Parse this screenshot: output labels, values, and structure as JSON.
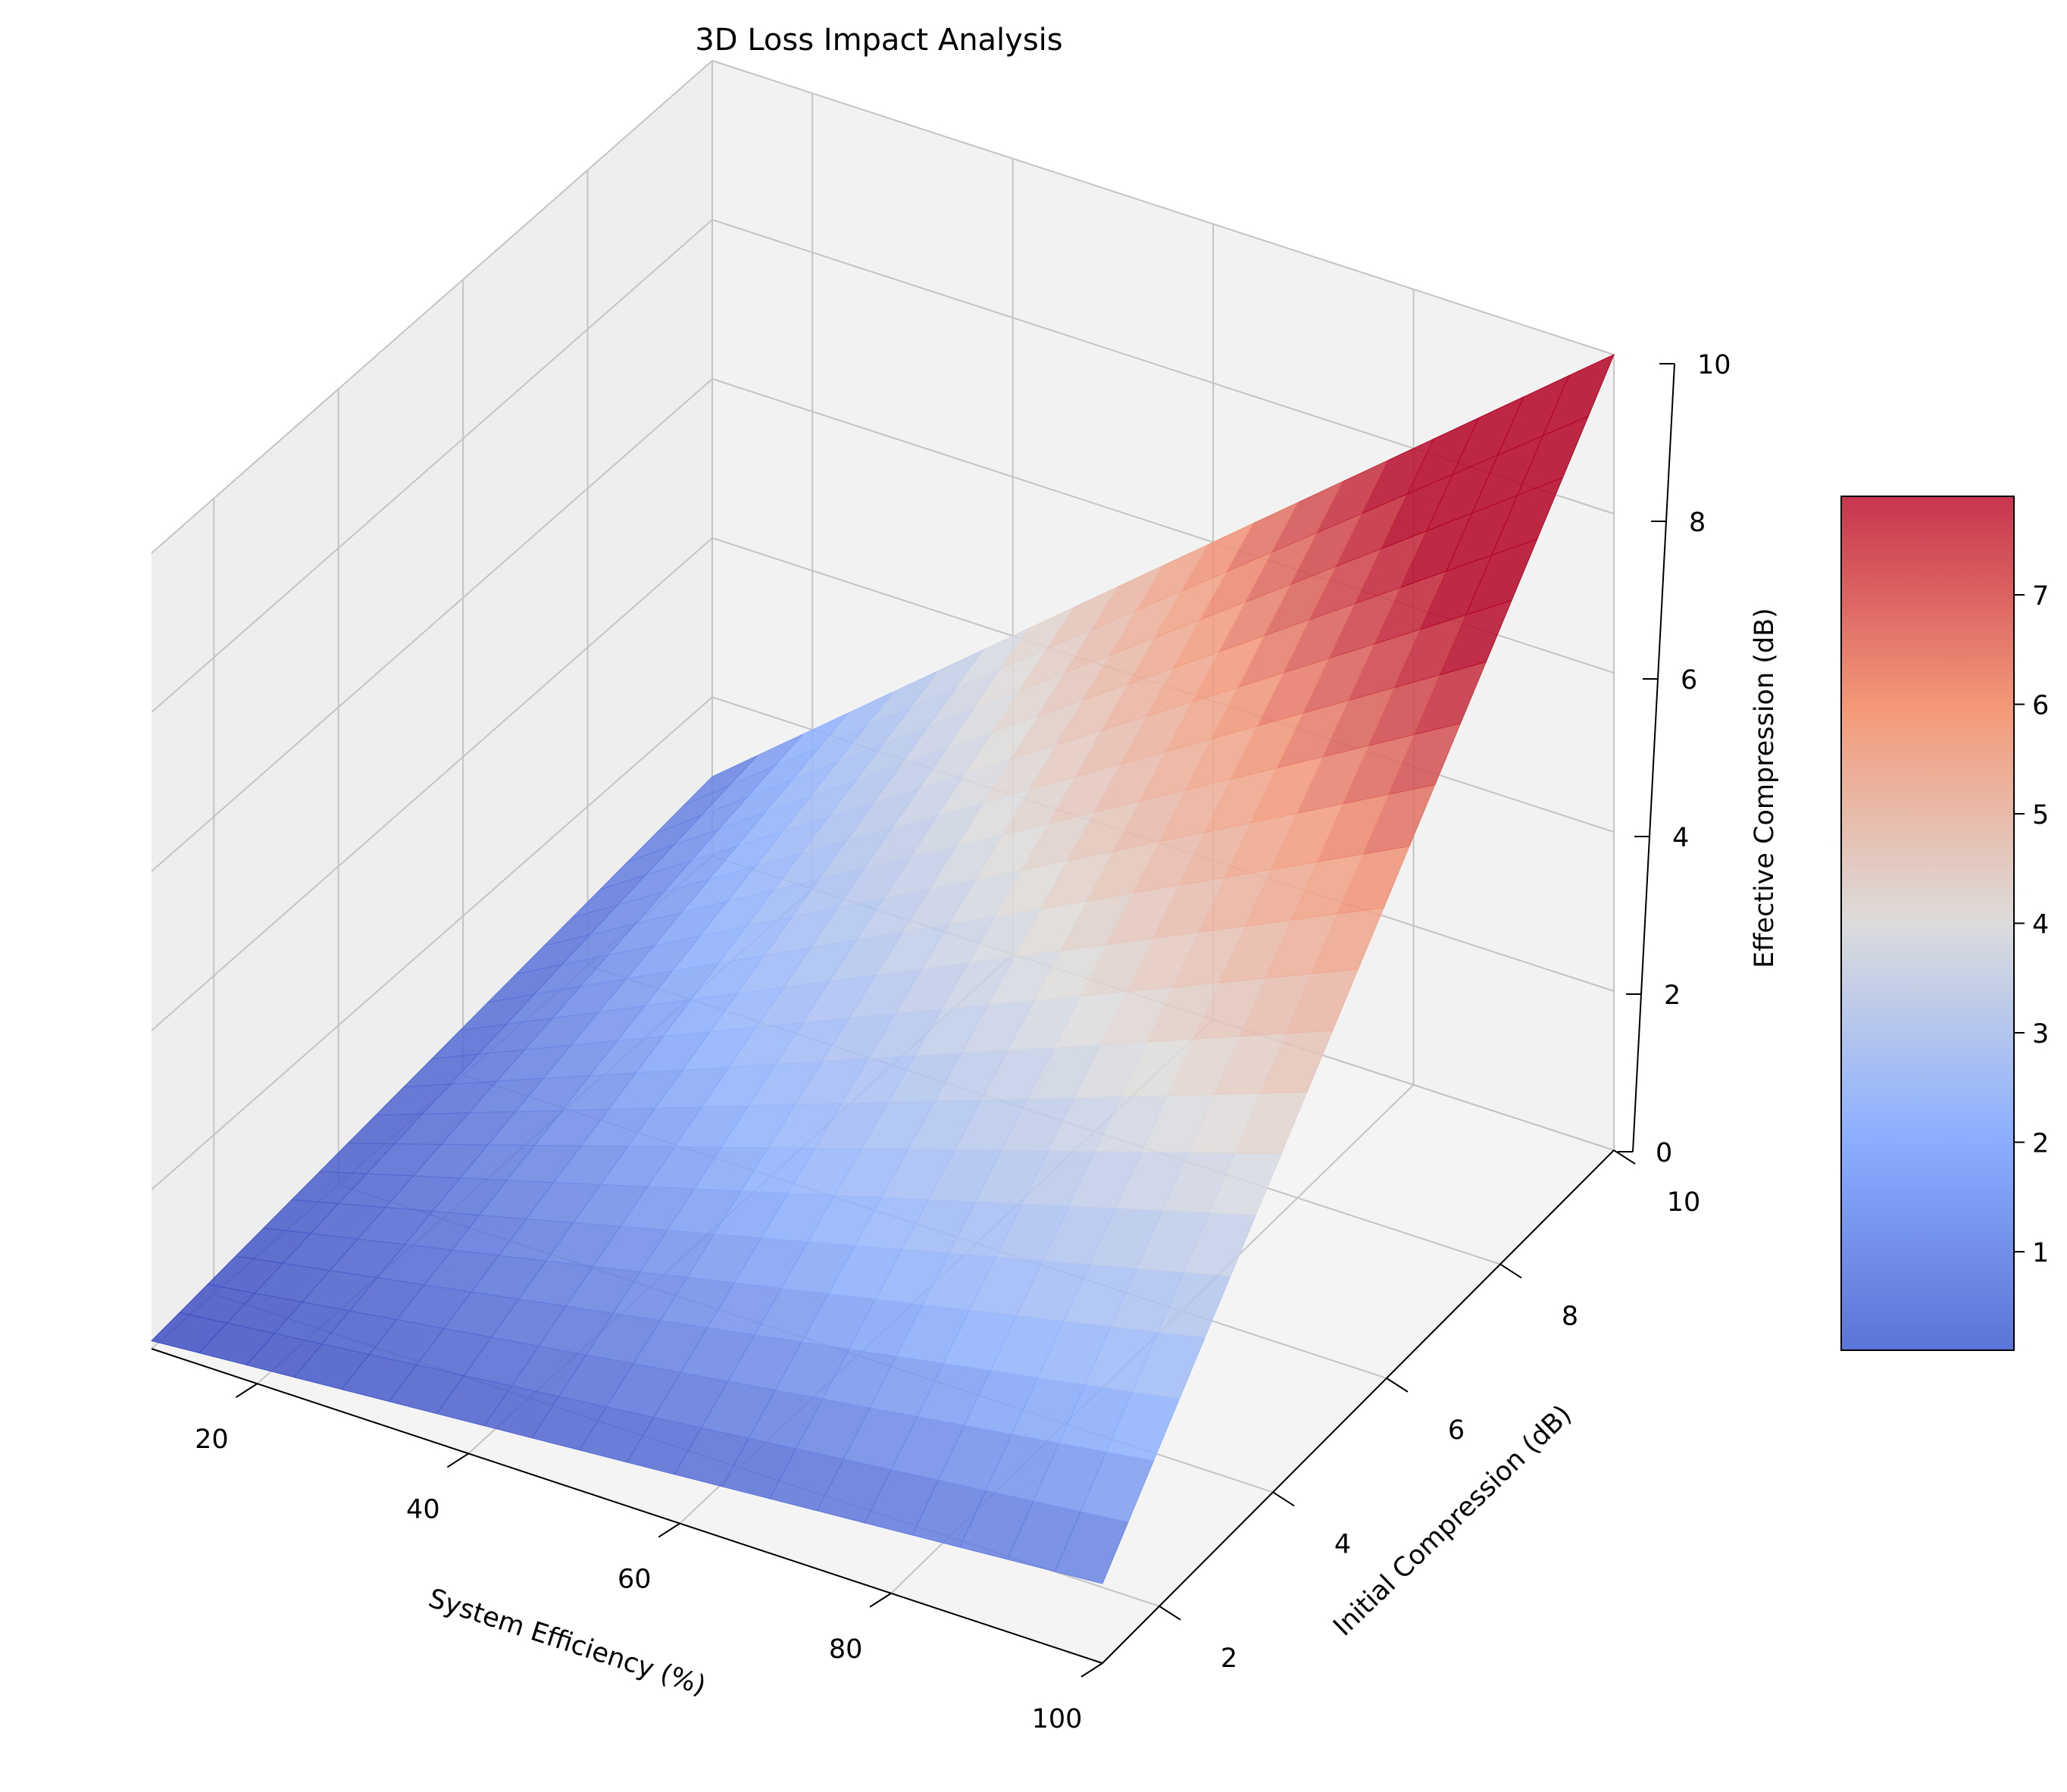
{
  "chart_data": {
    "type": "surface",
    "title": "3D Loss Impact Analysis",
    "xlabel": "System Efficiency (%)",
    "ylabel": "Initial Compression (dB)",
    "zlabel": "Effective Compression (dB)",
    "xlim": [
      10,
      100
    ],
    "ylim": [
      1,
      10
    ],
    "zlim": [
      0,
      10
    ],
    "x_ticks": [
      "20",
      "40",
      "60",
      "80",
      "100"
    ],
    "y_ticks": [
      "2",
      "4",
      "6",
      "8",
      "10"
    ],
    "z_ticks": [
      "0",
      "2",
      "4",
      "6",
      "8",
      "10"
    ],
    "colormap": "coolwarm",
    "colorbar_ticks": [
      "1",
      "2",
      "3",
      "4",
      "5",
      "6",
      "7"
    ],
    "colorbar_range": [
      0.1,
      7.9
    ],
    "grid": true,
    "corner_values": [
      {
        "x": 10,
        "y": 1,
        "z": 0.1
      },
      {
        "x": 100,
        "y": 1,
        "z": 1.0
      },
      {
        "x": 10,
        "y": 10,
        "z": 1.0
      },
      {
        "x": 100,
        "y": 10,
        "z": 10.0
      }
    ],
    "surface_formula": "z = y * x / 100"
  },
  "colors": {
    "pane_left": "#eeeeee",
    "pane_right": "#f2f2f2",
    "pane_floor": "#f4f4f4",
    "grid": "#c4c4c4"
  }
}
